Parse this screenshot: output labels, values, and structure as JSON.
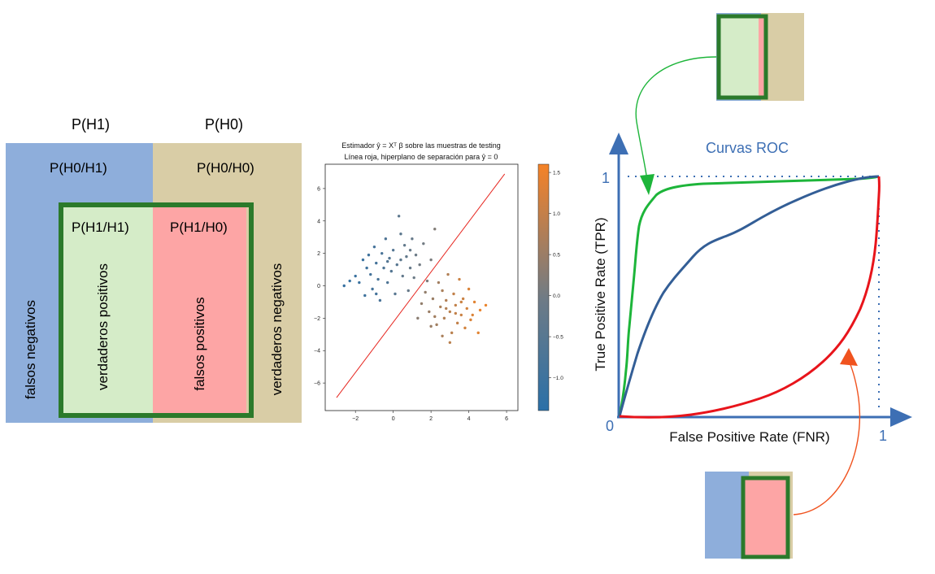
{
  "confusion_diagram": {
    "top_labels": [
      "P(H1)",
      "P(H0)"
    ],
    "cells": [
      "P(H0/H1)",
      "P(H0/H0)",
      "P(H1/H1)",
      "P(H1/H0)"
    ],
    "vertical_labels": [
      "falsos negativos",
      "verdaderos positivos",
      "falsos positivos",
      "verdaderos negativos"
    ],
    "colors": {
      "blue": "#8eaedb",
      "tan": "#d9cda6",
      "green_fill": "#d5ecc8",
      "red_fill": "#fda5a5",
      "frame": "#2b7a2b"
    }
  },
  "scatter_plot": {
    "title_line1": "Estimador ŷ = Xᵀ β sobre las muestras de testing",
    "title_line2": "Línea roja, hiperplano de separación para ŷ = 0",
    "x_ticks": [
      "−2",
      "0",
      "2",
      "4",
      "6"
    ],
    "y_ticks": [
      "6",
      "4",
      "2",
      "0",
      "−2",
      "−4",
      "−6"
    ],
    "colorbar_ticks": [
      "1.5",
      "1.0",
      "0.5",
      "0.0",
      "−0.5",
      "−1.0"
    ],
    "colors": {
      "low": "#2d6fa6",
      "high": "#f28527",
      "line": "#e6261f"
    }
  },
  "roc_diagram": {
    "title": "Curvas ROC",
    "xlabel": "False Positive Rate (FNR)",
    "ylabel": "True Positive Rate (TPR)",
    "tick_zero": "0",
    "tick_one_x": "1",
    "tick_one_y": "1",
    "colors": {
      "axis": "#3d6fb4",
      "green_curve": "#1db53a",
      "blue_curve": "#335e96",
      "red_curve": "#e8141b",
      "orange_arrow": "#f0531f",
      "green_arrow": "#1db53a"
    }
  },
  "chart_data": {
    "type": "scatter",
    "title": "Estimador ŷ = Xᵀ β sobre las muestras de testing",
    "subtitle": "Línea roja, hiperplano de separación para ŷ = 0",
    "xlim": [
      -3.6,
      6.6
    ],
    "ylim": [
      -7.7,
      7.5
    ],
    "x_ticks": [
      -2,
      0,
      2,
      4,
      6
    ],
    "y_ticks": [
      -6,
      -4,
      -2,
      0,
      2,
      4,
      6
    ],
    "colorbar": {
      "range": [
        -1.4,
        1.6
      ],
      "ticks": [
        -1.0,
        -0.5,
        0.0,
        0.5,
        1.0,
        1.5
      ]
    },
    "line": {
      "x": [
        -3.0,
        5.9
      ],
      "y": [
        -6.9,
        6.9
      ]
    },
    "points": [
      {
        "x": -2.6,
        "y": 0.0,
        "c": -1.2
      },
      {
        "x": -2.3,
        "y": 0.3,
        "c": -1.2
      },
      {
        "x": -2.0,
        "y": 0.6,
        "c": -1.1
      },
      {
        "x": -1.8,
        "y": 0.2,
        "c": -1.1
      },
      {
        "x": -1.6,
        "y": 1.6,
        "c": -1.1
      },
      {
        "x": -1.5,
        "y": -0.6,
        "c": -1.0
      },
      {
        "x": -1.4,
        "y": 1.1,
        "c": -1.0
      },
      {
        "x": -1.3,
        "y": 1.9,
        "c": -1.0
      },
      {
        "x": -1.2,
        "y": 0.7,
        "c": -0.9
      },
      {
        "x": -1.1,
        "y": -0.2,
        "c": -0.9
      },
      {
        "x": -1.0,
        "y": 2.4,
        "c": -0.9
      },
      {
        "x": -0.9,
        "y": 1.4,
        "c": -0.9
      },
      {
        "x": -0.8,
        "y": 0.4,
        "c": -0.8
      },
      {
        "x": -0.7,
        "y": -0.9,
        "c": -0.8
      },
      {
        "x": -0.6,
        "y": 2.0,
        "c": -0.8
      },
      {
        "x": -0.5,
        "y": 1.1,
        "c": -0.7
      },
      {
        "x": -0.4,
        "y": 2.9,
        "c": -0.7
      },
      {
        "x": -0.3,
        "y": 0.2,
        "c": -0.7
      },
      {
        "x": -0.2,
        "y": 1.7,
        "c": -0.6
      },
      {
        "x": -0.1,
        "y": 0.9,
        "c": -0.6
      },
      {
        "x": 0.0,
        "y": 2.2,
        "c": -0.6
      },
      {
        "x": 0.1,
        "y": -0.5,
        "c": -0.5
      },
      {
        "x": 0.2,
        "y": 1.3,
        "c": -0.5
      },
      {
        "x": 0.3,
        "y": 4.3,
        "c": -0.4
      },
      {
        "x": 0.4,
        "y": 3.2,
        "c": -0.4
      },
      {
        "x": 0.5,
        "y": 0.6,
        "c": -0.3
      },
      {
        "x": 0.6,
        "y": 2.5,
        "c": -0.3
      },
      {
        "x": 0.7,
        "y": 1.8,
        "c": -0.3
      },
      {
        "x": 0.8,
        "y": -0.3,
        "c": -0.2
      },
      {
        "x": 0.9,
        "y": 1.1,
        "c": -0.2
      },
      {
        "x": 1.0,
        "y": 2.9,
        "c": -0.2
      },
      {
        "x": 1.1,
        "y": 0.5,
        "c": -0.1
      },
      {
        "x": 1.2,
        "y": 1.9,
        "c": -0.1
      },
      {
        "x": 1.4,
        "y": 1.3,
        "c": 0.0
      },
      {
        "x": 1.6,
        "y": 2.6,
        "c": 0.0
      },
      {
        "x": 1.8,
        "y": 0.3,
        "c": 0.1
      },
      {
        "x": 2.0,
        "y": 1.6,
        "c": 0.1
      },
      {
        "x": 2.2,
        "y": 3.5,
        "c": 0.2
      },
      {
        "x": -0.9,
        "y": -0.5,
        "c": -0.9
      },
      {
        "x": 0.4,
        "y": 1.6,
        "c": -0.4
      },
      {
        "x": -0.3,
        "y": 1.5,
        "c": -0.6
      },
      {
        "x": 0.9,
        "y": 2.2,
        "c": -0.2
      },
      {
        "x": 1.3,
        "y": -2.0,
        "c": 0.3
      },
      {
        "x": 1.5,
        "y": -1.1,
        "c": 0.4
      },
      {
        "x": 1.7,
        "y": -0.4,
        "c": 0.4
      },
      {
        "x": 1.9,
        "y": -1.6,
        "c": 0.5
      },
      {
        "x": 2.1,
        "y": -0.8,
        "c": 0.5
      },
      {
        "x": 2.3,
        "y": -2.4,
        "c": 0.6
      },
      {
        "x": 2.4,
        "y": 0.2,
        "c": 0.6
      },
      {
        "x": 2.5,
        "y": -1.3,
        "c": 0.7
      },
      {
        "x": 2.6,
        "y": -0.3,
        "c": 0.7
      },
      {
        "x": 2.7,
        "y": -2.0,
        "c": 0.8
      },
      {
        "x": 2.8,
        "y": -0.9,
        "c": 0.8
      },
      {
        "x": 2.9,
        "y": 0.7,
        "c": 0.8
      },
      {
        "x": 3.0,
        "y": -1.6,
        "c": 0.9
      },
      {
        "x": 3.1,
        "y": -2.9,
        "c": 0.9
      },
      {
        "x": 3.2,
        "y": -0.5,
        "c": 1.0
      },
      {
        "x": 3.3,
        "y": -1.2,
        "c": 1.0
      },
      {
        "x": 3.4,
        "y": -2.3,
        "c": 1.0
      },
      {
        "x": 3.5,
        "y": 0.4,
        "c": 1.1
      },
      {
        "x": 3.6,
        "y": -1.8,
        "c": 1.1
      },
      {
        "x": 3.7,
        "y": -0.8,
        "c": 1.1
      },
      {
        "x": 3.8,
        "y": -2.6,
        "c": 1.2
      },
      {
        "x": 3.9,
        "y": -1.4,
        "c": 1.2
      },
      {
        "x": 4.0,
        "y": -0.2,
        "c": 1.3
      },
      {
        "x": 4.1,
        "y": -2.1,
        "c": 1.3
      },
      {
        "x": 4.3,
        "y": -1.0,
        "c": 1.4
      },
      {
        "x": 4.5,
        "y": -2.9,
        "c": 1.4
      },
      {
        "x": 4.6,
        "y": -1.5,
        "c": 1.5
      },
      {
        "x": 4.9,
        "y": -1.2,
        "c": 1.5
      },
      {
        "x": 2.0,
        "y": -2.5,
        "c": 0.5
      },
      {
        "x": 2.6,
        "y": -3.1,
        "c": 0.7
      },
      {
        "x": 3.0,
        "y": -3.5,
        "c": 0.9
      },
      {
        "x": 2.2,
        "y": -1.9,
        "c": 0.6
      },
      {
        "x": 3.3,
        "y": -1.7,
        "c": 1.0
      },
      {
        "x": 2.8,
        "y": -1.4,
        "c": 0.8
      },
      {
        "x": 3.6,
        "y": -1.0,
        "c": 1.1
      },
      {
        "x": 4.2,
        "y": -1.8,
        "c": 1.3
      }
    ]
  }
}
